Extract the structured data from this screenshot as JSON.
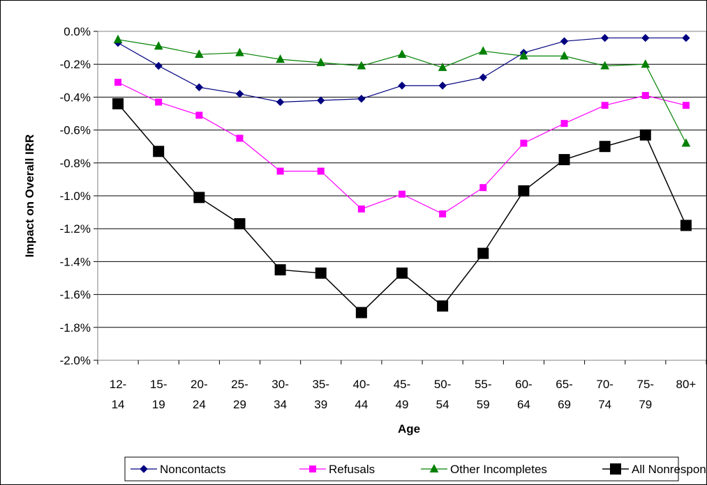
{
  "chart_data": {
    "type": "line",
    "categories": [
      "12-14",
      "15-19",
      "20-24",
      "25-29",
      "30-34",
      "35-39",
      "40-44",
      "45-49",
      "50-54",
      "55-59",
      "60-64",
      "65-69",
      "70-74",
      "75-79",
      "80+"
    ],
    "xlabel": "Age",
    "ylabel": "Impact on Overall IRR",
    "ylim": [
      -2.0,
      0.0
    ],
    "yticks": [
      "0.0%",
      "-0.2%",
      "-0.4%",
      "-0.6%",
      "-0.8%",
      "-1.0%",
      "-1.2%",
      "-1.4%",
      "-1.6%",
      "-1.8%",
      "-2.0%"
    ],
    "grid": true,
    "legend_position": "bottom",
    "series": [
      {
        "name": "Noncontacts",
        "color": "#000080",
        "marker": "diamond",
        "values": [
          -0.07,
          -0.21,
          -0.34,
          -0.38,
          -0.43,
          -0.42,
          -0.41,
          -0.33,
          -0.33,
          -0.28,
          -0.13,
          -0.06,
          -0.04,
          -0.04,
          -0.04
        ]
      },
      {
        "name": "Refusals",
        "color": "#FF00FF",
        "marker": "square",
        "values": [
          -0.31,
          -0.43,
          -0.51,
          -0.65,
          -0.85,
          -0.85,
          -1.08,
          -0.99,
          -1.11,
          -0.95,
          -0.68,
          -0.56,
          -0.45,
          -0.39,
          -0.45
        ]
      },
      {
        "name": "Other Incompletes",
        "color": "#008000",
        "marker": "triangle",
        "values": [
          -0.05,
          -0.09,
          -0.14,
          -0.13,
          -0.17,
          -0.19,
          -0.21,
          -0.14,
          -0.22,
          -0.12,
          -0.15,
          -0.15,
          -0.21,
          -0.2,
          -0.68
        ]
      },
      {
        "name": "All Nonresponse",
        "color": "#000000",
        "marker": "big-square",
        "values": [
          -0.44,
          -0.73,
          -1.01,
          -1.17,
          -1.45,
          -1.47,
          -1.71,
          -1.47,
          -1.67,
          -1.35,
          -0.97,
          -0.78,
          -0.7,
          -0.63,
          -1.18
        ]
      }
    ]
  }
}
